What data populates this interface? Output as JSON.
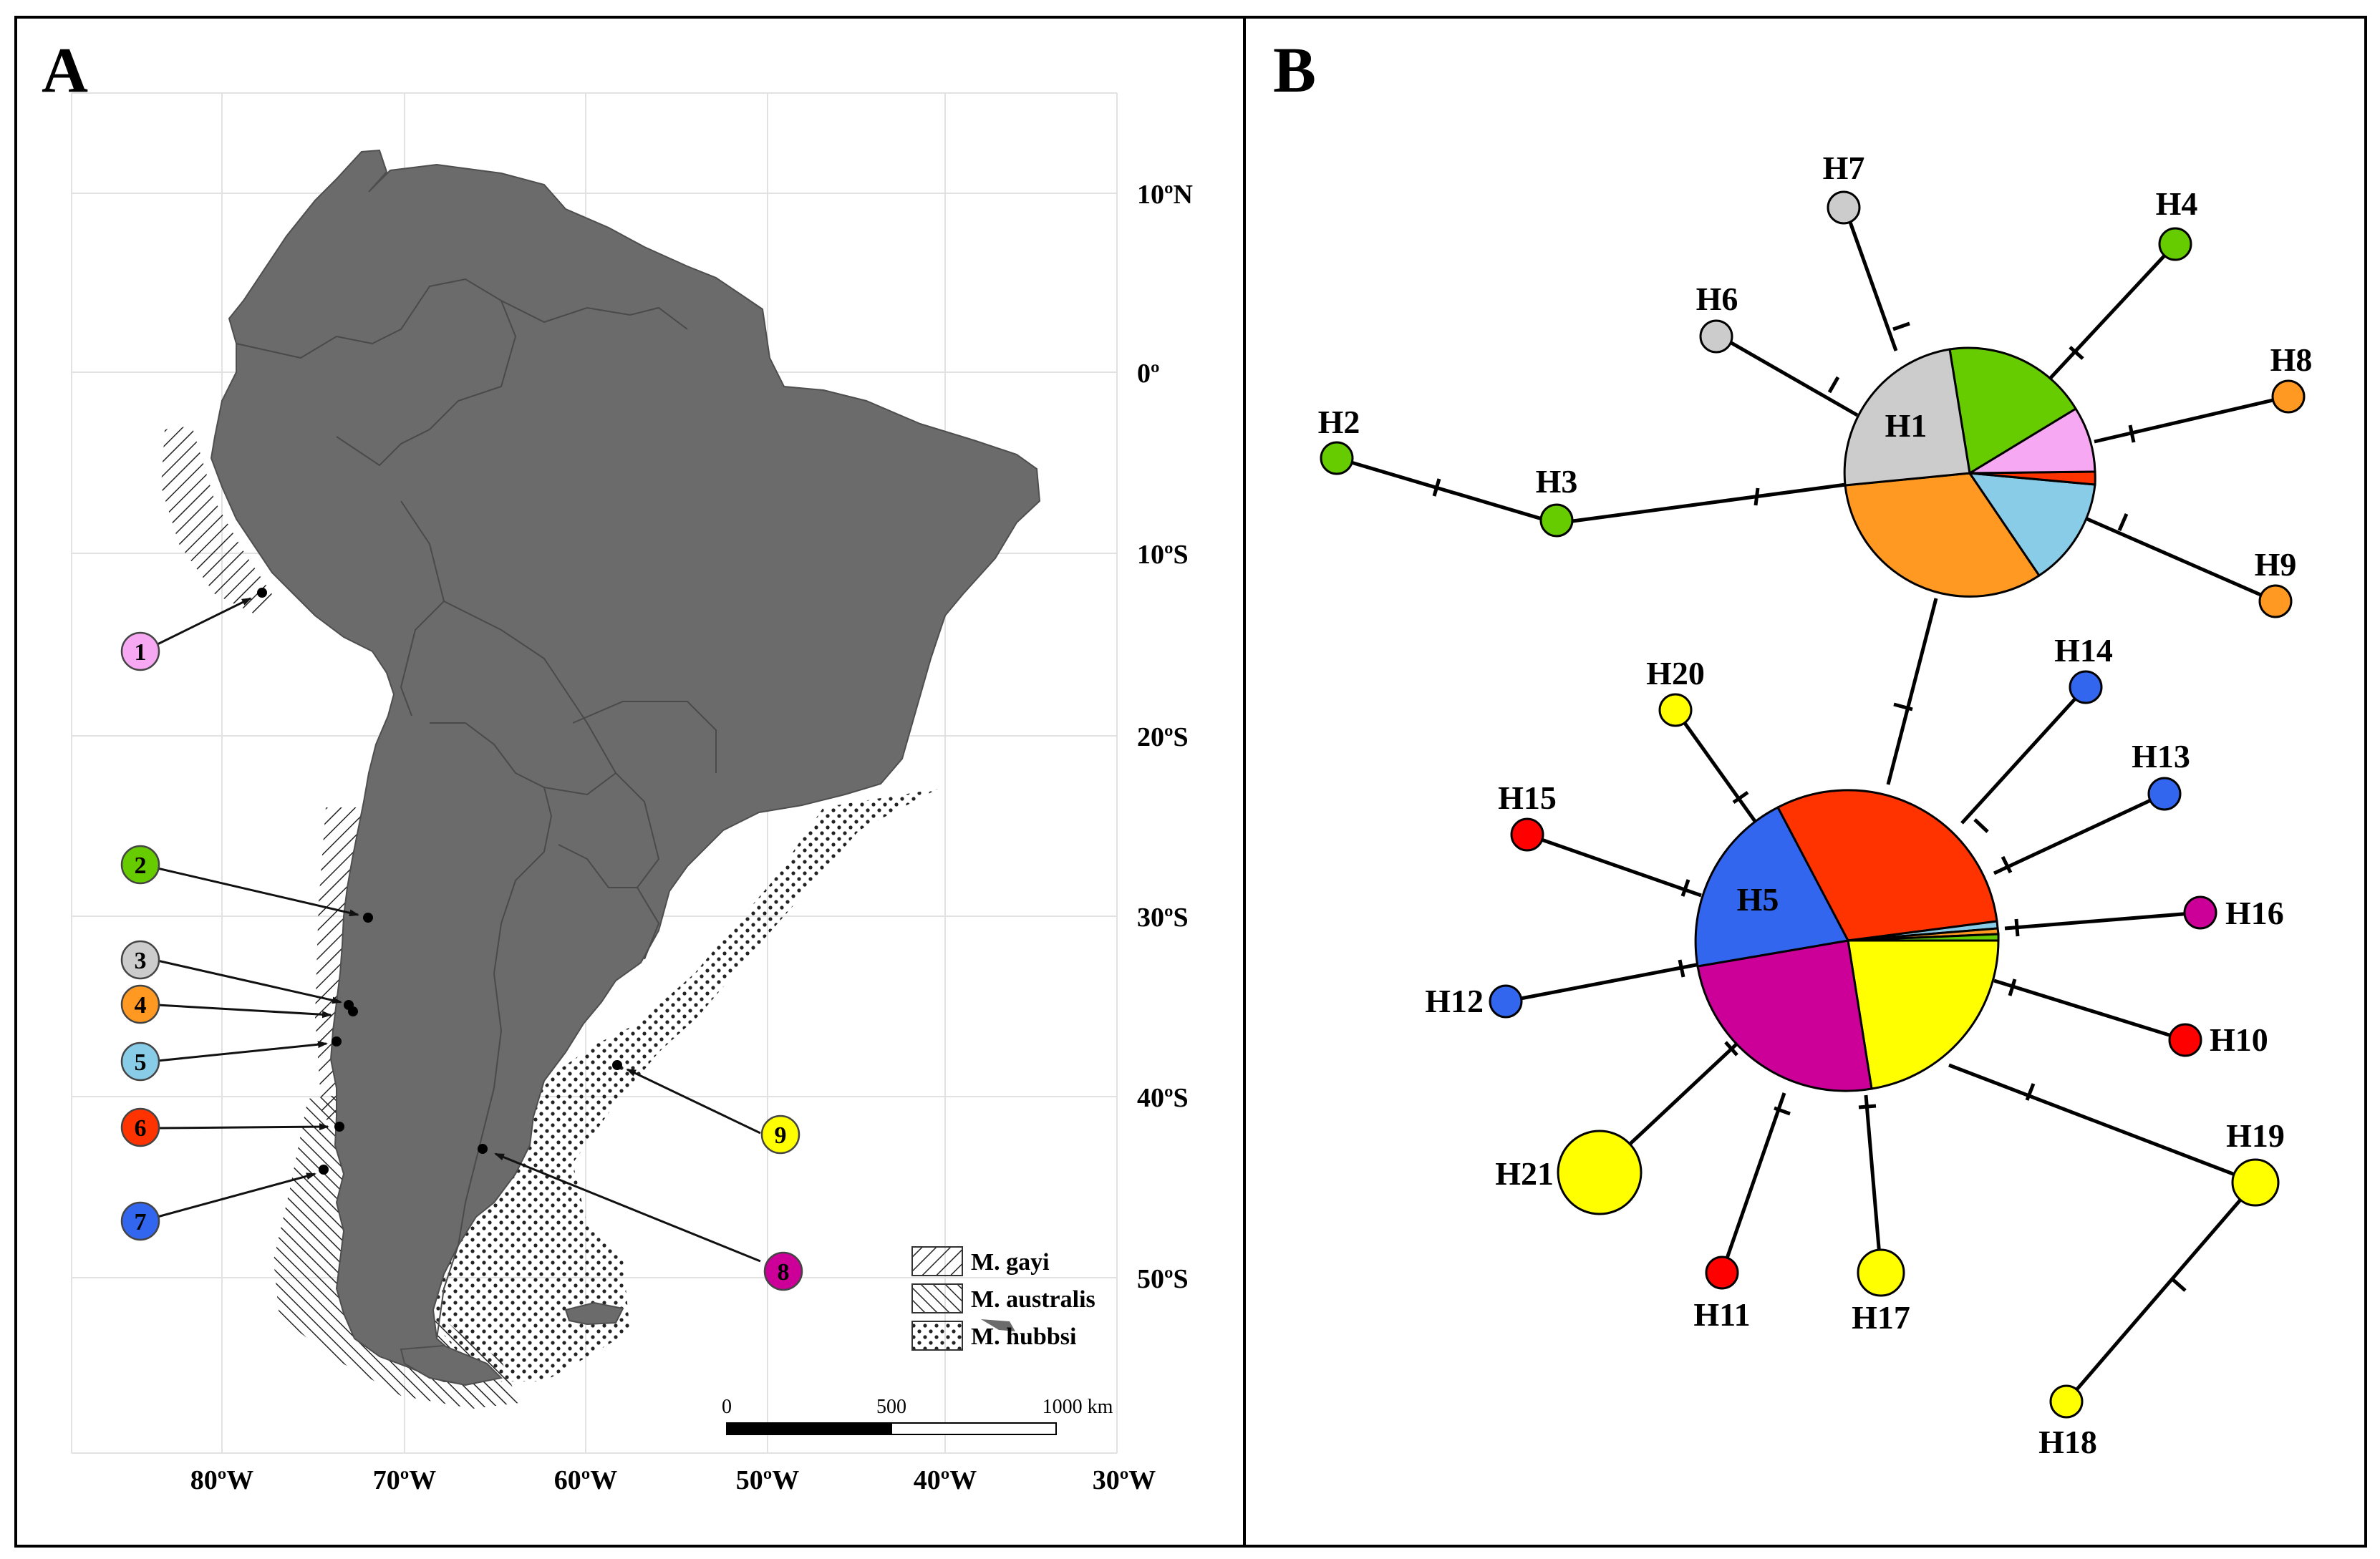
{
  "panels": {
    "a_label": "A",
    "b_label": "B"
  },
  "map": {
    "lat_labels": [
      "10ºN",
      "0º",
      "10ºS",
      "20ºS",
      "30ºS",
      "40ºS",
      "50ºS"
    ],
    "lon_labels": [
      "80ºW",
      "70ºW",
      "60ºW",
      "50ºW",
      "40ºW",
      "30ºW"
    ],
    "colors": {
      "land": "#6b6b6b",
      "grid": "#e2e2e2"
    },
    "sites": [
      {
        "label": "1",
        "color": "#f7a8f2"
      },
      {
        "label": "2",
        "color": "#66cc00"
      },
      {
        "label": "3",
        "color": "#cccccc"
      },
      {
        "label": "4",
        "color": "#ff9922"
      },
      {
        "label": "5",
        "color": "#88cce8"
      },
      {
        "label": "6",
        "color": "#ff3300"
      },
      {
        "label": "7",
        "color": "#3366ee"
      },
      {
        "label": "8",
        "color": "#cc0099"
      },
      {
        "label": "9",
        "color": "#ffff00"
      }
    ],
    "legend": {
      "gayi": "M. gayi",
      "australis": "M. australis",
      "hubbsi": "M. hubbsi"
    },
    "scale_bar": {
      "zero": "0",
      "mid": "500",
      "end": "1000 km"
    }
  },
  "network": {
    "haplotypes": [
      "H1",
      "H2",
      "H3",
      "H4",
      "H5",
      "H6",
      "H7",
      "H8",
      "H9",
      "H10",
      "H11",
      "H12",
      "H13",
      "H14",
      "H15",
      "H16",
      "H17",
      "H18",
      "H19",
      "H20",
      "H21"
    ]
  }
}
